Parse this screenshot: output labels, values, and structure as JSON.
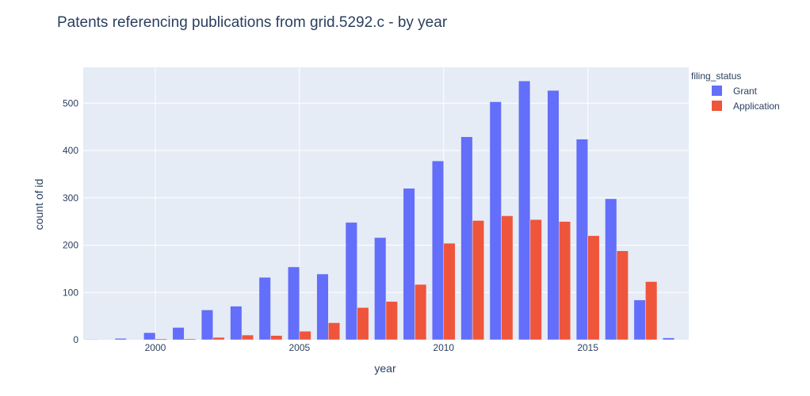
{
  "chart_data": {
    "type": "bar",
    "title": "Patents referencing publications from grid.5292.c - by year",
    "xlabel": "year",
    "ylabel": "count of id",
    "legend_title": "filing_status",
    "legend_position": "top-right",
    "x": [
      1998,
      1999,
      2000,
      2001,
      2002,
      2003,
      2004,
      2005,
      2006,
      2007,
      2008,
      2009,
      2010,
      2011,
      2012,
      2013,
      2014,
      2015,
      2016,
      2017,
      2018
    ],
    "series": [
      {
        "name": "Grant",
        "color": "#636efa",
        "values": [
          1,
          3,
          15,
          26,
          63,
          71,
          132,
          154,
          139,
          248,
          216,
          320,
          378,
          429,
          503,
          547,
          527,
          424,
          298,
          84,
          4
        ]
      },
      {
        "name": "Application",
        "color": "#ef553b",
        "values": [
          0,
          0,
          2,
          2,
          5,
          10,
          9,
          18,
          36,
          68,
          81,
          117,
          204,
          252,
          262,
          254,
          250,
          220,
          188,
          123,
          0
        ]
      }
    ],
    "xticks": [
      2000,
      2005,
      2010,
      2015
    ],
    "yticks": [
      0,
      100,
      200,
      300,
      400,
      500
    ],
    "xlim": [
      1997.5,
      2018.5
    ],
    "ylim": [
      0,
      575.8
    ],
    "grid": true
  }
}
